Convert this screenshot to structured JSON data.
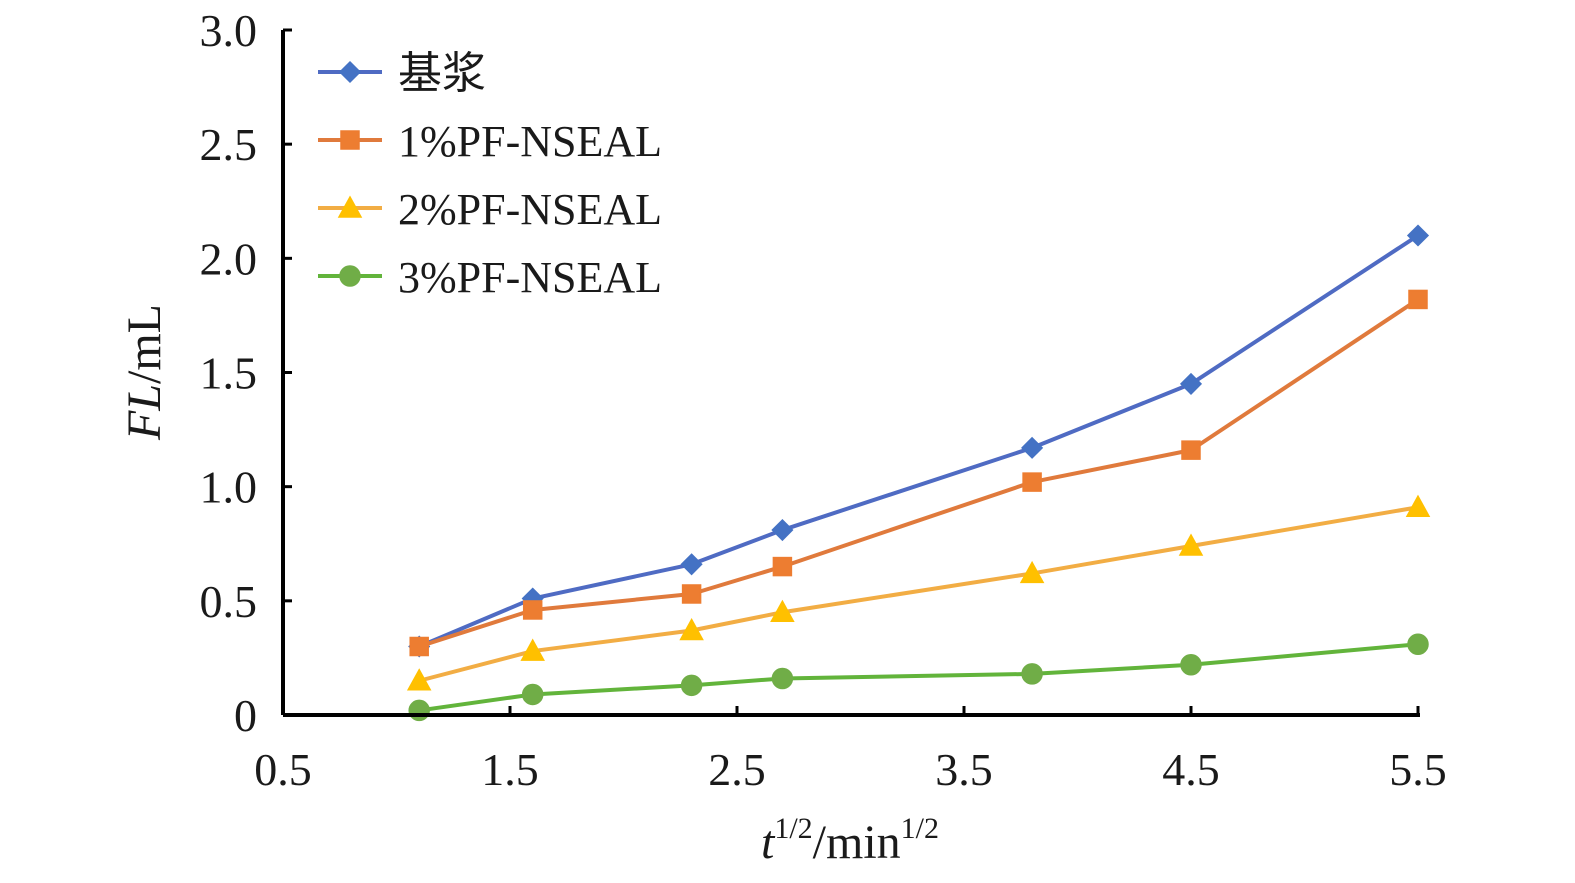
{
  "chart_data": {
    "type": "line",
    "title": "",
    "xlabel": {
      "base": "t",
      "sup": "1/2",
      "mid": "/min",
      "sup2": "1/2"
    },
    "ylabel": {
      "italic": "FL",
      "rest": "/mL"
    },
    "xlim": [
      0.5,
      5.5
    ],
    "ylim": [
      0,
      3.0
    ],
    "xticks": [
      "0.5",
      "1.5",
      "2.5",
      "3.5",
      "4.5",
      "5.5"
    ],
    "yticks": [
      "0",
      "0.5",
      "1.0",
      "1.5",
      "2.0",
      "2.5",
      "3.0"
    ],
    "grid": false,
    "legend_position": "top-left",
    "x": [
      1.1,
      1.6,
      2.3,
      2.7,
      3.8,
      4.5,
      5.5
    ],
    "series": [
      {
        "name": "基浆",
        "color": "#4f6bc3",
        "marker_color": "#4472c4",
        "marker": "diamond",
        "values": [
          0.3,
          0.51,
          0.66,
          0.81,
          1.17,
          1.45,
          2.1
        ]
      },
      {
        "name": "1%PF-NSEAL",
        "color": "#e07a3c",
        "marker_color": "#ed7d31",
        "marker": "square",
        "values": [
          0.3,
          0.46,
          0.53,
          0.65,
          1.02,
          1.16,
          1.82
        ]
      },
      {
        "name": "2%PF-NSEAL",
        "color": "#f2ad44",
        "marker_color": "#ffc000",
        "marker": "triangle",
        "values": [
          0.15,
          0.28,
          0.37,
          0.45,
          0.62,
          0.74,
          0.91
        ]
      },
      {
        "name": "3%PF-NSEAL",
        "color": "#62b43b",
        "marker_color": "#70ad47",
        "marker": "circle",
        "values": [
          0.02,
          0.09,
          0.13,
          0.16,
          0.18,
          0.22,
          0.31
        ]
      }
    ]
  }
}
